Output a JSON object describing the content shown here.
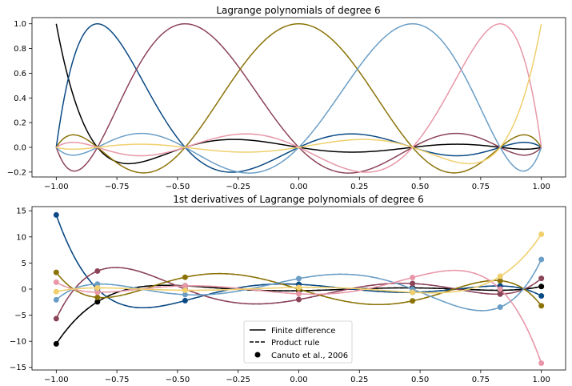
{
  "chart_data": [
    {
      "type": "line",
      "title": "Lagrange polynomials of degree 6",
      "xlabel": "",
      "ylabel": "",
      "xlim": [
        -1.1,
        1.1
      ],
      "ylim": [
        -0.24,
        1.05
      ],
      "xticks": [
        -1.0,
        -0.75,
        -0.5,
        -0.25,
        0.0,
        0.25,
        0.5,
        0.75,
        1.0
      ],
      "xtick_labels": [
        "−1.00",
        "−0.75",
        "−0.50",
        "−0.25",
        "0.00",
        "0.25",
        "0.50",
        "0.75",
        "1.00"
      ],
      "yticks": [
        -0.2,
        0.0,
        0.2,
        0.4,
        0.6,
        0.8,
        1.0
      ],
      "ytick_labels": [
        "−0.2",
        "0.0",
        "0.2",
        "0.4",
        "0.6",
        "0.8",
        "1.0"
      ],
      "nodes": [
        -1.0,
        -0.8302,
        -0.4688,
        0.0,
        0.4688,
        0.8302,
        1.0
      ],
      "series_colors": [
        "#000000",
        "#0b4a84",
        "#8c4459",
        "#8c7308",
        "#6a9ec6",
        "#e897a8",
        "#f0cf6d"
      ],
      "grid": false
    },
    {
      "type": "line",
      "title": "1st derivatives of Lagrange polynomials of degree 6",
      "xlabel": "",
      "ylabel": "",
      "xlim": [
        -1.1,
        1.1
      ],
      "ylim": [
        -15.5,
        15.8
      ],
      "xticks": [
        -1.0,
        -0.75,
        -0.5,
        -0.25,
        0.0,
        0.25,
        0.5,
        0.75,
        1.0
      ],
      "xtick_labels": [
        "−1.00",
        "−0.75",
        "−0.50",
        "−0.25",
        "0.00",
        "0.25",
        "0.50",
        "0.75",
        "1.00"
      ],
      "yticks": [
        -15,
        -10,
        -5,
        0,
        5,
        10,
        15
      ],
      "ytick_labels": [
        "−15",
        "−10",
        "−5",
        "0",
        "5",
        "10",
        "15"
      ],
      "nodes": [
        -1.0,
        -0.8302,
        -0.4688,
        0.0,
        0.4688,
        0.8302,
        1.0
      ],
      "series_colors": [
        "#000000",
        "#0b4a84",
        "#8c4459",
        "#8c7308",
        "#6a9ec6",
        "#e897a8",
        "#f0cf6d"
      ],
      "legend_position": "lower-center",
      "legend": [
        {
          "label": "Finite difference",
          "style": "solid-line"
        },
        {
          "label": "Product rule",
          "style": "dashed-line"
        },
        {
          "label": "Canuto et al., 2006",
          "style": "marker"
        }
      ],
      "grid": false
    }
  ]
}
